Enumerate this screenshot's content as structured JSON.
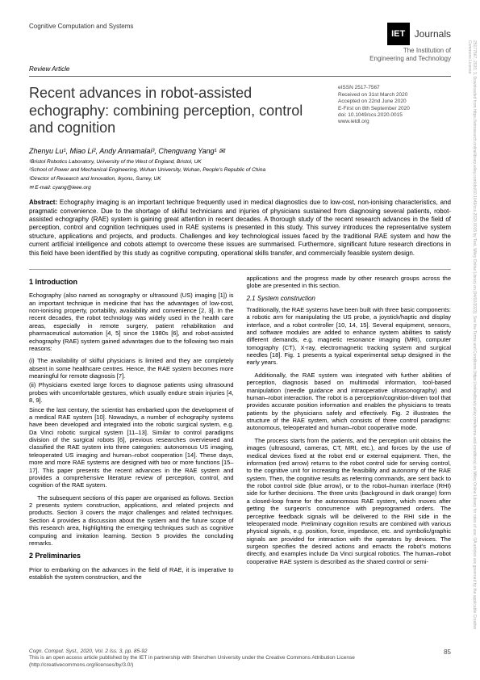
{
  "header": {
    "journal_name": "Cognitive Computation and Systems",
    "review_label": "Review Article",
    "logo_text": "IET",
    "journals_label": "Journals",
    "institution": "The Institution of\nEngineering and Technology"
  },
  "meta": {
    "eissn": "eISSN 2517-7567",
    "received": "Received on 31st March 2020",
    "accepted": "Accepted on 22nd June 2020",
    "efirst": "E-First on 8th September 2020",
    "doi": "doi: 10.1049/ccs.2020.0015",
    "url": "www.ietdl.org"
  },
  "title": "Recent advances in robot-assisted echography: combining perception, control and cognition",
  "authors_html": "Zhenyu Lu¹, Miao Li², Andy Annamalai³, Chenguang Yang¹ ✉",
  "affiliations": [
    "¹Bristol Robotics Laboratory, University of the West of England, Bristol, UK",
    "²School of Power and Mechanical Engineering, Wuhan University, Wuhan, People's Republic of China",
    "³Director of Research and Innovation, Ikyons, Surrey, UK"
  ],
  "email": "✉ E-mail: cyang@ieee.org",
  "abstract_label": "Abstract:",
  "abstract": "Echography imaging is an important technique frequently used in medical diagnostics due to low-cost, non-ionising characteristics, and pragmatic convenience. Due to the shortage of skilful technicians and injuries of physicians sustained from diagnosing several patients, robot-assisted echography (RAE) system is gaining great attention in recent decades. A thorough study of the recent research advances in the field of perception, control and cognition techniques used in RAE systems is presented in this study. This survey introduces the representative system structure, applications and projects, and products. Challenges and key technological issues faced by the traditional RAE system and how the current artificial intelligence and cobots attempt to overcome these issues are summarised. Furthermore, significant future research directions in this field have been identified by this study as cognitive computing, operational skills transfer, and commercially feasible system design.",
  "section1": {
    "heading": "1    Introduction",
    "p1": "Echography (also named as sonography or ultrasound (US) imaging [1]) is an important technique in medicine that has the advantages of low-cost, non-ionising property, portability, availability and convenience [2, 3]. In the recent decades, the robot technology was widely used in the health care areas, especially in remote surgery, patient rehabilitation and pharmaceutical automation [4, 5] since the 1980s [6], and robot-assisted echography (RAE) system gained advantages due to the following two main reasons:",
    "li1": "(i) The availability of skilful physicians is limited and they are completely absent in some healthcare centres. Hence, the RAE system becomes more meaningful for remote diagnosis [7].",
    "li2": "(ii) Physicians exerted large forces to diagnose patients using ultrasound probes with uncomfortable gestures, which usually endure strain injuries [4, 8, 9].",
    "p2": "Since the last century, the scientist has embarked upon the development of a medical RAE system [10]. Nowadays, a number of echography systems have been developed and integrated into the robotic surgical system, e.g. Da Vinci robotic surgical system [11–13]. Similar to control paradigms division of the surgical robots [6], previous researches overviewed and classified the RAE system into three categories: autonomous US imaging, teleoperated US imaging and human–robot cooperation [14]. These days, more and more RAE systems are designed with two or more functions [15–17]. This paper presents the recent advances in the RAE system and provides a comprehensive literature review of perception, control, and cognition of the RAE system.",
    "p3": "The subsequent sections of this paper are organised as follows. Section 2 presents system construction, applications, and related projects and products. Section 3 covers the major challenges and related techniques. Section 4 provides a discussion about the system and the future scope of this research area, highlighting the emerging techniques such as cognitive computing and imitation learning. Section 5 provides the concluding remarks."
  },
  "section2": {
    "heading": "2    Preliminaries",
    "p1": "Prior to embarking on the advances in the field of RAE, it is imperative to establish the system construction, and the",
    "p_cont": "applications and the progress made by other research groups across the globe are presented in this section.",
    "sub_heading": "2.1 System construction",
    "p2": "Traditionally, the RAE systems have been built with three basic components: a robotic arm for manipulating the US probe, a joystick/haptic and display interface, and a robot controller [10, 14, 15]. Several equipment, sensors, and software modules are added to enhance system abilities to satisfy different demands, e.g. magnetic resonance imaging (MRI), computer tomography (CT), X-ray, electromagnetic tracking system and surgical needles [18]. Fig. 1 presents a typical experimental setup designed in the early years.",
    "p3": "Additionally, the RAE system was integrated with further abilities of perception, diagnosis based on multimodal information, tool-based manipulation (needle guidance and intraoperative ultrasonography) and human–robot interaction. The robot is a perception/cognition-driven tool that provides accurate position information and enables the physicians to treats patients by the physicians safely and effectively. Fig. 2 illustrates the structure of the RAE system, which consists of three control paradigms: autonomous, teleoperated and human–robot cooperative mode.",
    "p4": "The process starts from the patients, and the perception unit obtains the images (ultrasound, cameras, CT, MRI, etc.), and forces by the use of medical devices fixed at the robot end or external equipment. Then, the information (red arrow) returns to the robot control side for serving control, to the cognitive unit for increasing the feasibility and autonomy of the RAE system. Then, the cognitive results as referring commands, are sent back to the robot control side (blue arrow), or to the robot–human interface (RHI) side for further decisions. The three units (background in dark orange) form a closed-loop frame for the autonomous RAE system, which moves after getting the surgeon's concurrence with preprogramed orders. The perceptive feedback signals will be delivered to the RHI side in the teleoperated mode. Preliminary cognition results are combined with various physical signals, e.g. position, force, impedance, etc. and symbolic/graphic signals are provided for interaction with the operators by devices. The surgeon specifies the desired actions and emacts the robot's motions directly, and examples include Da Vinci surgical robotics. The human–robot cooperative RAE system is described as the shared control or semi-"
  },
  "footer": {
    "citation": "Cogn. Comput. Syst., 2020, Vol. 2 Iss. 3, pp. 85-92",
    "license": "This is an open access article published by the IET in partnership with Shenzhen University under the Creative Commons Attribution License",
    "license_url": "(http://creativecommons.org/licenses/by/3.0/)",
    "page": "85"
  },
  "side_text": "25177567, 2020, 3, Downloaded from https://ietresearch.onlinelibrary.wiley.com/doi/10.1049/ccs.2020.0015 by Test, Wiley Online Library on [04/02/2023]. See the Terms and Conditions (https://onlinelibrary.wiley.com/terms-and-conditions) on Wiley Online Library for rules of use; OA articles are governed by the applicable Creative Commons License"
}
